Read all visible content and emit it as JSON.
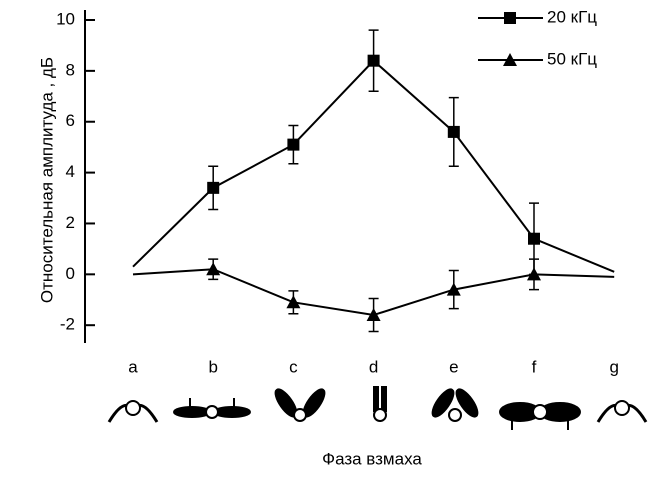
{
  "chart_data": {
    "type": "line",
    "x_label": "Фаза взмаха",
    "y_label": "Относительная амплитуда , дБ",
    "categories": [
      "a",
      "b",
      "c",
      "d",
      "e",
      "f",
      "g"
    ],
    "series": [
      {
        "name": "20 кГц",
        "color": "#000000",
        "marker": "square",
        "values": [
          0.3,
          3.4,
          5.1,
          8.4,
          5.6,
          1.4,
          0.1
        ],
        "errors": [
          null,
          0.85,
          0.75,
          1.2,
          1.35,
          1.4,
          null
        ]
      },
      {
        "name": "50 кГц",
        "color": "#000000",
        "marker": "triangle",
        "values": [
          0,
          0.2,
          -1.1,
          -1.6,
          -0.6,
          0,
          -0.1
        ],
        "errors": [
          null,
          0.4,
          0.45,
          0.65,
          0.75,
          0.6,
          null
        ]
      }
    ],
    "ylim": [
      -2.7,
      10
    ],
    "yticks": [
      -2,
      0,
      2,
      4,
      6,
      8,
      10
    ],
    "legend": "top-right"
  }
}
